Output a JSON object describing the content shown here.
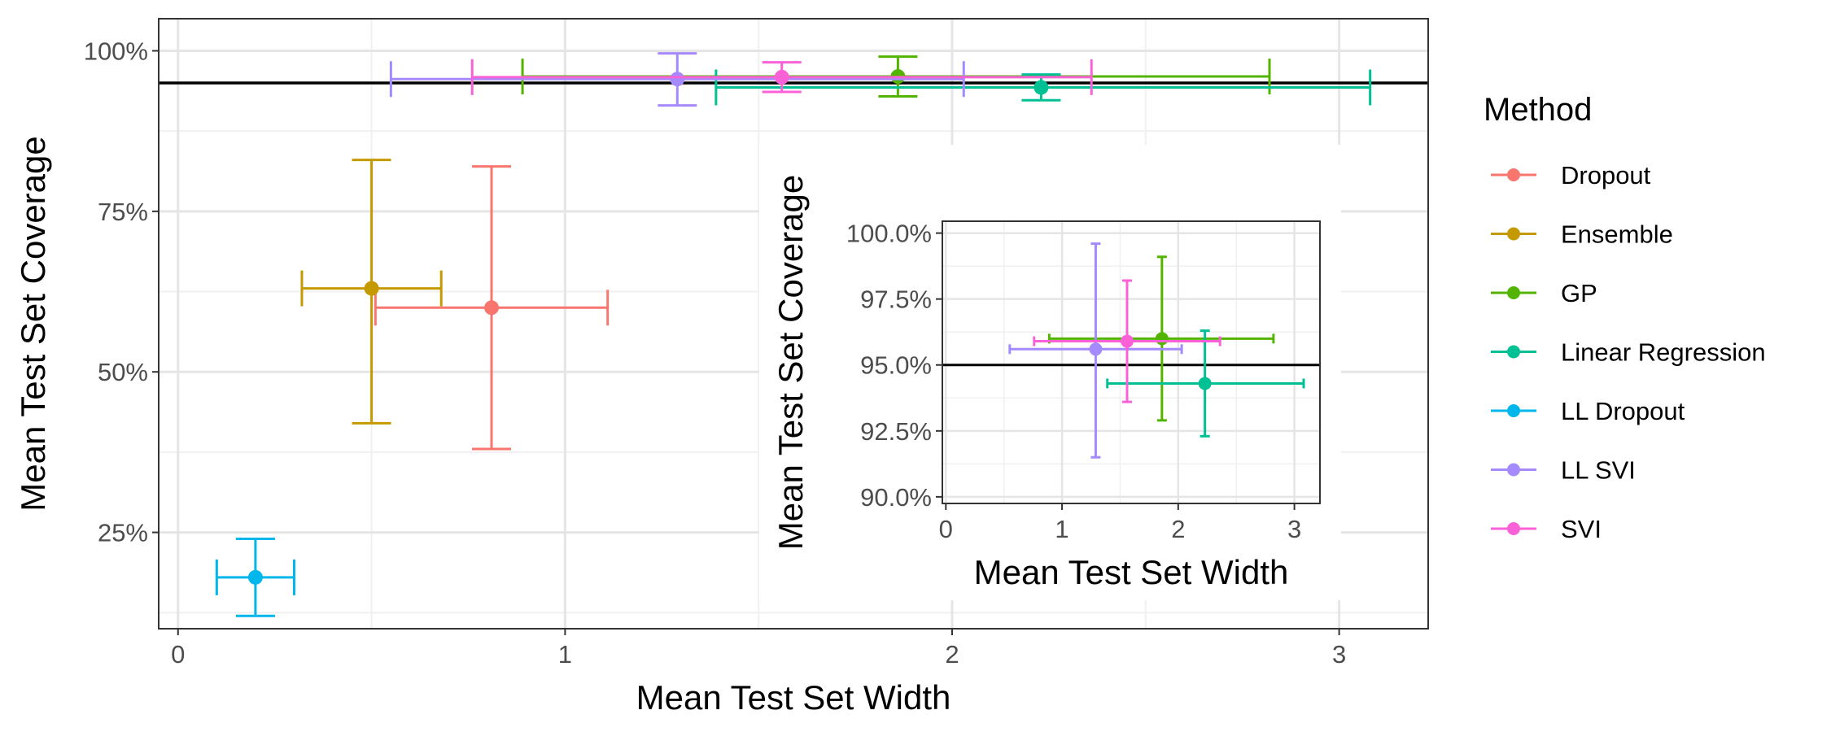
{
  "chart_data": [
    {
      "type": "scatter",
      "xlabel": "Mean Test Set Width",
      "ylabel": "Mean Test Set Coverage",
      "xlim": [
        -0.05,
        3.23
      ],
      "ylim": [
        0.1,
        1.05
      ],
      "xticks": [
        0,
        1,
        2,
        3
      ],
      "xtick_labels": [
        "0",
        "1",
        "2",
        "3"
      ],
      "yticks": [
        0.25,
        0.5,
        0.75,
        1.0
      ],
      "ytick_labels": [
        "25%",
        "50%",
        "75%",
        "100%"
      ],
      "reference_line_y": 0.95,
      "grid": true,
      "legend_position": "right",
      "legend_title": "Method",
      "series": [
        {
          "name": "Dropout",
          "color": "#F8766D",
          "x": 0.81,
          "y": 0.6,
          "x_err": [
            0.51,
            1.11
          ],
          "y_err": [
            0.38,
            0.82
          ]
        },
        {
          "name": "Ensemble",
          "color": "#C49A00",
          "x": 0.5,
          "y": 0.63,
          "x_err": [
            0.32,
            0.68
          ],
          "y_err": [
            0.42,
            0.83
          ]
        },
        {
          "name": "GP",
          "color": "#53B400",
          "x": 1.86,
          "y": 0.96,
          "x_err": [
            0.89,
            2.82
          ],
          "y_err": [
            0.929,
            0.991
          ]
        },
        {
          "name": "Linear Regression",
          "color": "#00C094",
          "x": 2.23,
          "y": 0.943,
          "x_err": [
            1.39,
            3.08
          ],
          "y_err": [
            0.923,
            0.963
          ]
        },
        {
          "name": "LL Dropout",
          "color": "#00B6EB",
          "x": 0.2,
          "y": 0.18,
          "x_err": [
            0.1,
            0.3
          ],
          "y_err": [
            0.12,
            0.24
          ]
        },
        {
          "name": "LL SVI",
          "color": "#A58AFF",
          "x": 1.29,
          "y": 0.956,
          "x_err": [
            0.55,
            2.03
          ],
          "y_err": [
            0.915,
            0.996
          ]
        },
        {
          "name": "SVI",
          "color": "#FB61D7",
          "x": 1.56,
          "y": 0.959,
          "x_err": [
            0.76,
            2.36
          ],
          "y_err": [
            0.936,
            0.982
          ]
        }
      ]
    },
    {
      "type": "scatter",
      "xlabel": "Mean Test Set Width",
      "ylabel": "Mean Test Set Coverage",
      "xlim": [
        -0.03,
        3.22
      ],
      "ylim": [
        0.8975,
        1.0045
      ],
      "xticks": [
        0,
        1,
        2,
        3
      ],
      "xtick_labels": [
        "0",
        "1",
        "2",
        "3"
      ],
      "yticks": [
        0.9,
        0.925,
        0.95,
        0.975,
        1.0
      ],
      "ytick_labels": [
        "90.0%",
        "92.5%",
        "95.0%",
        "97.5%",
        "100.0%"
      ],
      "reference_line_y": 0.95,
      "grid": true,
      "series": [
        {
          "name": "GP",
          "color": "#53B400",
          "x": 1.86,
          "y": 0.96,
          "x_err": [
            0.89,
            2.82
          ],
          "y_err": [
            0.929,
            0.991
          ]
        },
        {
          "name": "Linear Regression",
          "color": "#00C094",
          "x": 2.23,
          "y": 0.943,
          "x_err": [
            1.39,
            3.08
          ],
          "y_err": [
            0.923,
            0.963
          ]
        },
        {
          "name": "LL SVI",
          "color": "#A58AFF",
          "x": 1.29,
          "y": 0.956,
          "x_err": [
            0.55,
            2.03
          ],
          "y_err": [
            0.915,
            0.996
          ]
        },
        {
          "name": "SVI",
          "color": "#FB61D7",
          "x": 1.56,
          "y": 0.959,
          "x_err": [
            0.76,
            2.36
          ],
          "y_err": [
            0.936,
            0.982
          ]
        }
      ]
    }
  ]
}
